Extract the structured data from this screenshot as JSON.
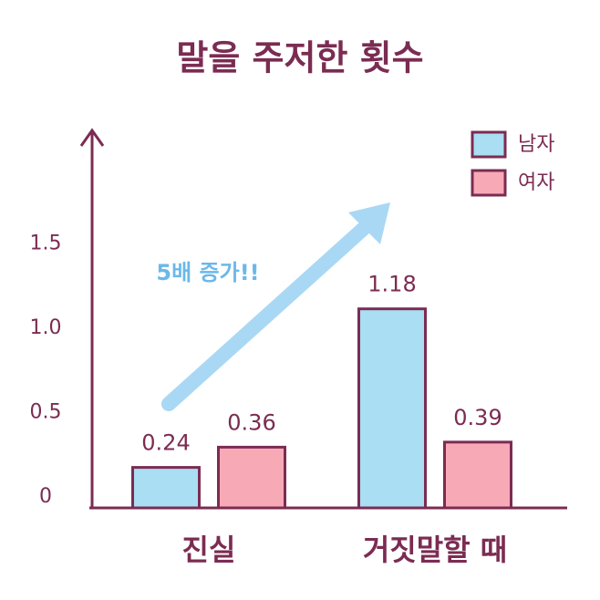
{
  "chart_data": {
    "type": "bar",
    "title": "말을 주저한 횟수",
    "categories": [
      "진실",
      "거짓말할 때"
    ],
    "series": [
      {
        "name": "남자",
        "color": "#a9def3",
        "values": [
          0.24,
          1.18
        ]
      },
      {
        "name": "여자",
        "color": "#f8a9b6",
        "values": [
          0.36,
          0.39
        ]
      }
    ],
    "ylim": [
      0,
      2.2
    ],
    "yticks": [
      0,
      0.5,
      {
        "value": 1,
        "label": "1.0"
      },
      1.5
    ],
    "grid": false,
    "legend": "upper right",
    "annotation": "5배 증가!!"
  }
}
